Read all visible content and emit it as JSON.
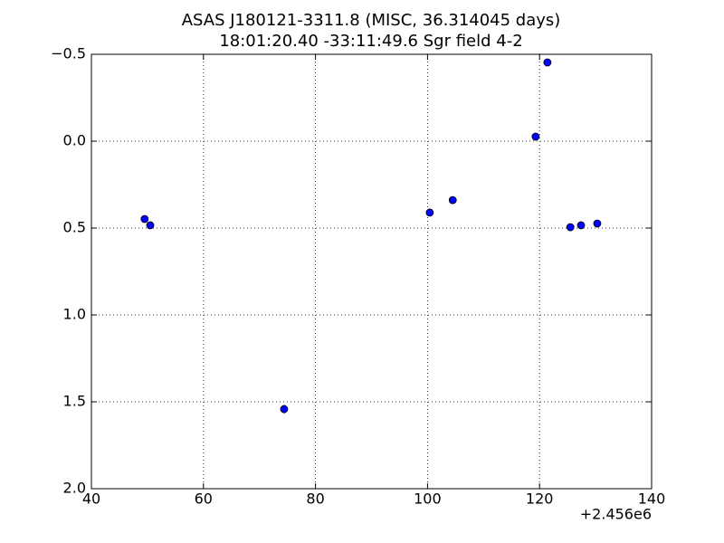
{
  "chart_data": {
    "type": "scatter",
    "title": "ASAS J180121-3311.8  (MISC, 36.314045 days)",
    "subtitle": "18:01:20.40 -33:11:49.6 Sgr field 4-2",
    "x_offset_label": "+2.456e6",
    "x": [
      49.5,
      50.5,
      74.4,
      100.4,
      104.5,
      119.3,
      121.4,
      125.5,
      127.4,
      130.3
    ],
    "values": [
      0.448,
      0.484,
      1.542,
      0.411,
      0.339,
      -0.026,
      -0.453,
      0.495,
      0.484,
      0.474
    ],
    "errors": [
      0.01,
      0.01,
      0.025,
      0.01,
      0.01,
      0.01,
      0.01,
      0.01,
      0.01,
      0.01
    ],
    "color": "#0000ff",
    "xlim": [
      40,
      140
    ],
    "xticks": [
      40,
      60,
      80,
      100,
      120,
      140
    ],
    "ylim": [
      -0.5,
      2.0
    ],
    "yticks": [
      {
        "value": -0.5,
        "label": "−0.5"
      },
      {
        "value": 0.0,
        "label": "0.0"
      },
      {
        "value": 0.5,
        "label": "0.5"
      },
      {
        "value": 1.0,
        "label": "1.0"
      },
      {
        "value": 1.5,
        "label": "1.5"
      },
      {
        "value": 2.0,
        "label": "2.0"
      }
    ],
    "y_inverted": true,
    "grid": true
  }
}
